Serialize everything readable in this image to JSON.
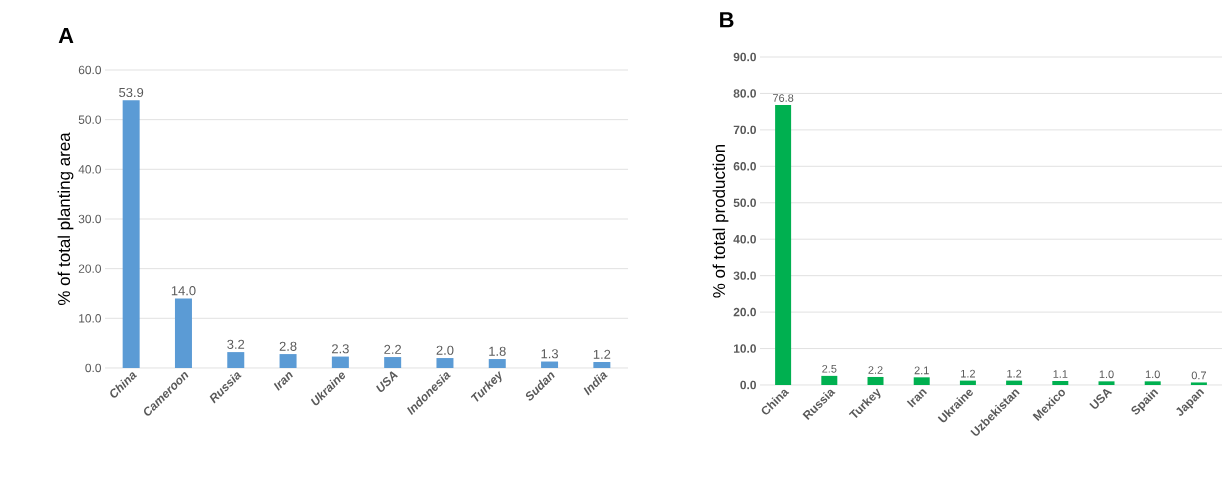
{
  "chart_data": [
    {
      "type": "bar",
      "title": "A",
      "ylabel": "% of total planting area",
      "categories": [
        "China",
        "Cameroon",
        "Russia",
        "Iran",
        "Ukraine",
        "USA",
        "Indonesia",
        "Turkey",
        "Sudan",
        "India"
      ],
      "values": [
        53.9,
        14.0,
        3.2,
        2.8,
        2.3,
        2.2,
        2.0,
        1.8,
        1.3,
        1.2
      ],
      "color": "#5b9bd5",
      "ylim": [
        0,
        60
      ],
      "yticks": [
        {
          "value": 0,
          "label": "0.0"
        },
        {
          "value": 10,
          "label": "10.0"
        },
        {
          "value": 20,
          "label": "20.0"
        },
        {
          "value": 30,
          "label": "30.0"
        },
        {
          "value": 40,
          "label": "40.0"
        },
        {
          "value": 50,
          "label": "50.0"
        },
        {
          "value": 60,
          "label": "60.0"
        }
      ],
      "value_labels": [
        "53.9",
        "14.0",
        "3.2",
        "2.8",
        "2.3",
        "2.2",
        "2.0",
        "1.8",
        "1.3",
        "1.2"
      ],
      "grid": "y"
    },
    {
      "type": "bar",
      "title": "B",
      "ylabel": "% of total production",
      "categories": [
        "China",
        "Russia",
        "Turkey",
        "Iran",
        "Ukraine",
        "Uzbekistan",
        "Mexico",
        "USA",
        "Spain",
        "Japan"
      ],
      "values": [
        76.8,
        2.5,
        2.2,
        2.1,
        1.2,
        1.2,
        1.1,
        1.0,
        1.0,
        0.7
      ],
      "color": "#00b050",
      "ylim": [
        0,
        90
      ],
      "yticks": [
        {
          "value": 0,
          "label": "0.0"
        },
        {
          "value": 10,
          "label": "10.0"
        },
        {
          "value": 20,
          "label": "20.0"
        },
        {
          "value": 30,
          "label": "30.0"
        },
        {
          "value": 40,
          "label": "40.0"
        },
        {
          "value": 50,
          "label": "50.0"
        },
        {
          "value": 60,
          "label": "60.0"
        },
        {
          "value": 70,
          "label": "70.0"
        },
        {
          "value": 80,
          "label": "80.0"
        },
        {
          "value": 90,
          "label": "90.0"
        }
      ],
      "value_labels": [
        "76.8",
        "2.5",
        "2.2",
        "2.1",
        "1.2",
        "1.2",
        "1.1",
        "1.0",
        "1.0",
        "0.7"
      ],
      "grid": "y"
    }
  ]
}
